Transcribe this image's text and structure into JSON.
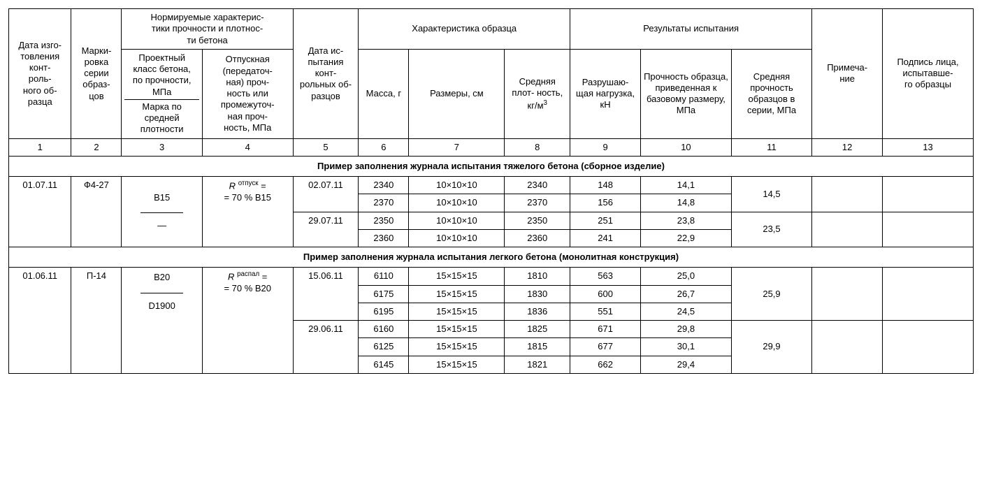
{
  "headers": {
    "col1": "Дата изго-\nтовления конт-\nроль-\nного об-\nразца",
    "col2": "Марки-\nровка серии образ-\nцов",
    "norm_group": "Нормируемые характерис-\nтики прочности и плотнос-\nти бетона",
    "col3_top": "Проектный класс бетона, по прочности, МПа",
    "col3_bot": "Марка по средней плотности",
    "col4": "Отпускная (передаточ-\nная) проч-\nность или промежуточ-\nная проч-\nность, МПа",
    "col5": "Дата ис-\nпытания конт-\nрольных об-\nразцов",
    "sample_group": "Характеристика образца",
    "col6": "Масса, г",
    "col7": "Размеры, см",
    "col8_html": "Средняя плот-\nность, кг/м<sup>3</sup>",
    "result_group": "Результаты испытания",
    "col9": "Разрушаю-\nщая нагрузка, кН",
    "col10": "Прочность образца, приведенная к базовому размеру, МПа",
    "col11": "Средняя прочность образцов в серии, МПа",
    "col12": "Примеча-\nние",
    "col13": "Подпись лица, испытавше-\nго образцы",
    "nums": [
      "1",
      "2",
      "3",
      "4",
      "5",
      "6",
      "7",
      "8",
      "9",
      "10",
      "11",
      "12",
      "13"
    ]
  },
  "sections": {
    "heavy": "Пример заполнения журнала испытания  тяжелого бетона (сборное изделие)",
    "light": "Пример заполнения журнала испытания  легкого бетона (монолитная конструкция)"
  },
  "heavy": {
    "date_made": "01.07.11",
    "mark": "Ф4-27",
    "class_top": "B15",
    "class_bot": "—",
    "formula_sup": "отпуск",
    "formula_eq": "= 70 % B15",
    "tests": [
      {
        "date": "02.07.11",
        "rows": [
          {
            "mass": "2340",
            "dim": "10×10×10",
            "dens": "2340",
            "load": "148",
            "str": "14,1"
          },
          {
            "mass": "2370",
            "dim": "10×10×10",
            "dens": "2370",
            "load": "156",
            "str": "14,8"
          }
        ],
        "avg": "14,5"
      },
      {
        "date": "29.07.11",
        "rows": [
          {
            "mass": "2350",
            "dim": "10×10×10",
            "dens": "2350",
            "load": "251",
            "str": "23,8"
          },
          {
            "mass": "2360",
            "dim": "10×10×10",
            "dens": "2360",
            "load": "241",
            "str": "22,9"
          }
        ],
        "avg": "23,5"
      }
    ]
  },
  "light": {
    "date_made": "01.06.11",
    "mark": "П-14",
    "class_top": "B20",
    "class_bot": "D1900",
    "formula_sup": "распал",
    "formula_eq": "= 70 % B20",
    "tests": [
      {
        "date": "15.06.11",
        "rows": [
          {
            "mass": "6110",
            "dim": "15×15×15",
            "dens": "1810",
            "load": "563",
            "str": "25,0"
          },
          {
            "mass": "6175",
            "dim": "15×15×15",
            "dens": "1830",
            "load": "600",
            "str": "26,7"
          },
          {
            "mass": "6195",
            "dim": "15×15×15",
            "dens": "1836",
            "load": "551",
            "str": "24,5"
          }
        ],
        "avg": "25,9"
      },
      {
        "date": "29.06.11",
        "rows": [
          {
            "mass": "6160",
            "dim": "15×15×15",
            "dens": "1825",
            "load": "671",
            "str": "29,8"
          },
          {
            "mass": "6125",
            "dim": "15×15×15",
            "dens": "1815",
            "load": "677",
            "str": "30,1"
          },
          {
            "mass": "6145",
            "dim": "15×15×15",
            "dens": "1821",
            "load": "662",
            "str": "29,4"
          }
        ],
        "avg": "29,9"
      }
    ]
  }
}
